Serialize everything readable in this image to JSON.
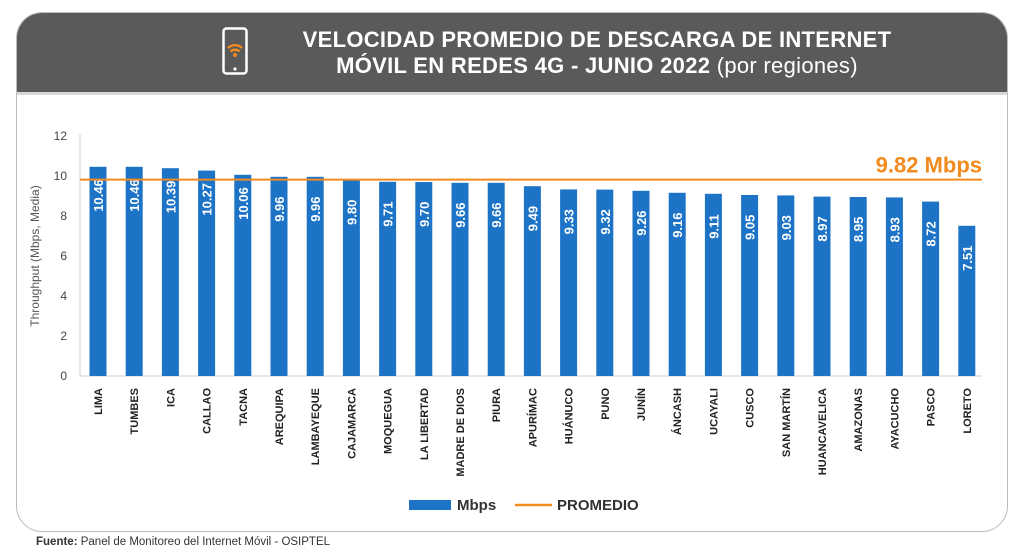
{
  "header": {
    "title_line1": "VELOCIDAD PROMEDIO DE DESCARGA DE INTERNET",
    "title_line2": "MÓVIL EN REDES 4G - JUNIO 2022",
    "title_suffix": " (por regiones)",
    "icon": "phone-wifi-icon"
  },
  "colors": {
    "bar": "#1d74c6",
    "average_line": "#f28a1e",
    "header_bg": "#5a5a5a"
  },
  "chart_data": {
    "type": "bar",
    "ylabel": "Throughput (Mbps, Media)",
    "ylim": [
      0,
      12
    ],
    "yticks": [
      0,
      2,
      4,
      6,
      8,
      10,
      12
    ],
    "categories": [
      "LIMA",
      "TUMBES",
      "ICA",
      "CALLAO",
      "TACNA",
      "AREQUIPA",
      "LAMBAYEQUE",
      "CAJAMARCA",
      "MOQUEGUA",
      "LA LIBERTAD",
      "MADRE DE DIOS",
      "PIURA",
      "APURÍMAC",
      "HUÁNUCO",
      "PUNO",
      "JUNÍN",
      "ÁNCASH",
      "UCAYALI",
      "CUSCO",
      "SAN MARTÍN",
      "HUANCAVELICA",
      "AMAZONAS",
      "AYACUCHO",
      "PASCO",
      "LORETO"
    ],
    "values": [
      10.46,
      10.46,
      10.39,
      10.27,
      10.06,
      9.96,
      9.96,
      9.8,
      9.71,
      9.7,
      9.66,
      9.66,
      9.49,
      9.33,
      9.32,
      9.26,
      9.16,
      9.11,
      9.05,
      9.03,
      8.97,
      8.95,
      8.93,
      8.72,
      7.51
    ],
    "value_labels": [
      "10.46",
      "10.46",
      "10.39",
      "10.27",
      "10.06",
      "9.96",
      "9.96",
      "9.80",
      "9.71",
      "9.70",
      "9.66",
      "9.66",
      "9.49",
      "9.33",
      "9.32",
      "9.26",
      "9.16",
      "9.11",
      "9.05",
      "9.03",
      "8.97",
      "8.95",
      "8.93",
      "8.72",
      "7.51"
    ],
    "average": 9.82,
    "average_label": "9.82 Mbps",
    "legend": [
      {
        "name": "Mbps",
        "kind": "bar"
      },
      {
        "name": "PROMEDIO",
        "kind": "line"
      }
    ],
    "legend_position": "bottom",
    "grid": false
  },
  "footer": {
    "source_label": "Fuente:",
    "source_text": " Panel de Monitoreo del Internet Móvil - OSIPTEL"
  }
}
